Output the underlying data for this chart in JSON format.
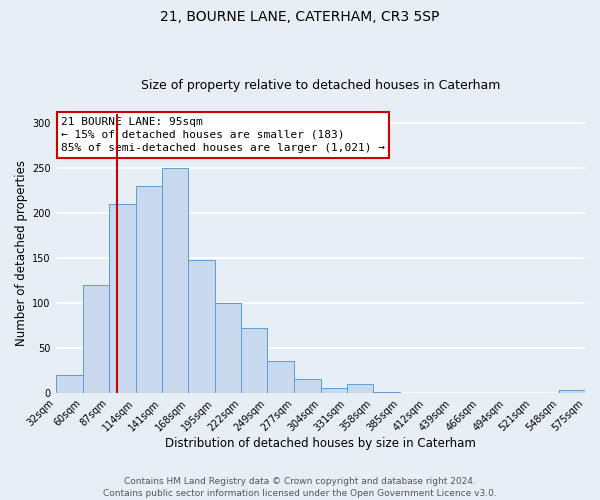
{
  "title": "21, BOURNE LANE, CATERHAM, CR3 5SP",
  "subtitle": "Size of property relative to detached houses in Caterham",
  "xlabel": "Distribution of detached houses by size in Caterham",
  "ylabel": "Number of detached properties",
  "bin_edges": [
    32,
    60,
    87,
    114,
    141,
    168,
    195,
    222,
    249,
    277,
    304,
    331,
    358,
    385,
    412,
    439,
    466,
    494,
    521,
    548,
    575
  ],
  "bar_heights": [
    20,
    120,
    210,
    230,
    250,
    148,
    100,
    72,
    36,
    16,
    5,
    10,
    1,
    0,
    0,
    0,
    0,
    0,
    0,
    3
  ],
  "bar_color": "#c9d9ed",
  "bar_edge_color": "#5b9bd5",
  "vline_x": 95,
  "vline_color": "#cc0000",
  "annotation_title": "21 BOURNE LANE: 95sqm",
  "annotation_line1": "← 15% of detached houses are smaller (183)",
  "annotation_line2": "85% of semi-detached houses are larger (1,021) →",
  "annotation_box_color": "#cc0000",
  "ylim": [
    0,
    310
  ],
  "yticks": [
    0,
    50,
    100,
    150,
    200,
    250,
    300
  ],
  "tick_labels": [
    "32sqm",
    "60sqm",
    "87sqm",
    "114sqm",
    "141sqm",
    "168sqm",
    "195sqm",
    "222sqm",
    "249sqm",
    "277sqm",
    "304sqm",
    "331sqm",
    "358sqm",
    "385sqm",
    "412sqm",
    "439sqm",
    "466sqm",
    "494sqm",
    "521sqm",
    "548sqm",
    "575sqm"
  ],
  "footer_line1": "Contains HM Land Registry data © Crown copyright and database right 2024.",
  "footer_line2": "Contains public sector information licensed under the Open Government Licence v3.0.",
  "bg_color": "#e8eef6",
  "plot_bg_color": "#e8eef6",
  "grid_color": "#ffffff",
  "title_fontsize": 10,
  "subtitle_fontsize": 9,
  "xlabel_fontsize": 8.5,
  "ylabel_fontsize": 8.5,
  "tick_fontsize": 7,
  "footer_fontsize": 6.5,
  "annotation_fontsize": 8
}
